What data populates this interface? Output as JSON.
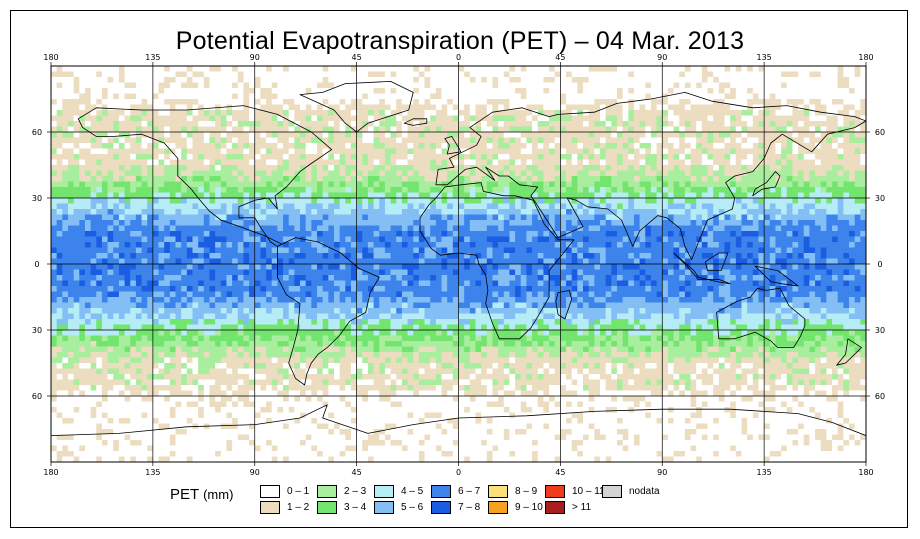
{
  "title": "Potential Evapotranspiration (PET) – 04 Mar. 2013",
  "axes": {
    "lon_ticks": [
      {
        "lon": -180,
        "label": "180"
      },
      {
        "lon": -135,
        "label": "135"
      },
      {
        "lon": -90,
        "label": "90"
      },
      {
        "lon": -45,
        "label": "45"
      },
      {
        "lon": 0,
        "label": "0"
      },
      {
        "lon": 45,
        "label": "45"
      },
      {
        "lon": 90,
        "label": "90"
      },
      {
        "lon": 135,
        "label": "135"
      },
      {
        "lon": 180,
        "label": "180"
      }
    ],
    "lat_ticks": [
      {
        "lat": 60,
        "label": "60"
      },
      {
        "lat": 30,
        "label": "30"
      },
      {
        "lat": 0,
        "label": "0"
      },
      {
        "lat": -30,
        "label": "30"
      },
      {
        "lat": -60,
        "label": "60"
      }
    ],
    "lon_range": [
      -180,
      180
    ],
    "lat_range": [
      -90,
      90
    ]
  },
  "legend": {
    "title": "PET",
    "unit": "(mm)",
    "items": [
      {
        "label": "0 – 1",
        "color": "#ffffff"
      },
      {
        "label": "1 – 2",
        "color": "#ecdcc0"
      },
      {
        "label": "2 – 3",
        "color": "#a9ee9e"
      },
      {
        "label": "3 – 4",
        "color": "#73e56e"
      },
      {
        "label": "4 – 5",
        "color": "#b5ecf6"
      },
      {
        "label": "5 – 6",
        "color": "#83bef5"
      },
      {
        "label": "6 – 7",
        "color": "#3c84ec"
      },
      {
        "label": "7 – 8",
        "color": "#1a5de2"
      },
      {
        "label": "8 – 9",
        "color": "#fae07a"
      },
      {
        "label": "9 – 10",
        "color": "#f7a21e"
      },
      {
        "label": "10 – 11",
        "color": "#f03a1c"
      },
      {
        "label": "> 11",
        "color": "#a81e1e"
      },
      {
        "label": "nodata",
        "color": "#d4d4d4"
      }
    ]
  },
  "zones": [
    {
      "lat": 90,
      "band": 0
    },
    {
      "lat": 76,
      "band": 0
    },
    {
      "lat": 68,
      "band": 1
    },
    {
      "lat": 56,
      "band": 1
    },
    {
      "lat": 46,
      "band": 1
    },
    {
      "lat": 38,
      "band": 2
    },
    {
      "lat": 33,
      "band": 3
    },
    {
      "lat": 28,
      "band": 4
    },
    {
      "lat": 22,
      "band": 5
    },
    {
      "lat": 14,
      "band": 6
    },
    {
      "lat": 6,
      "band": 6
    },
    {
      "lat": -4,
      "band": 6
    },
    {
      "lat": -12,
      "band": 6
    },
    {
      "lat": -20,
      "band": 5
    },
    {
      "lat": -26,
      "band": 4
    },
    {
      "lat": -32,
      "band": 3
    },
    {
      "lat": -38,
      "band": 2
    },
    {
      "lat": -45,
      "band": 1
    },
    {
      "lat": -55,
      "band": 1
    },
    {
      "lat": -62,
      "band": 0
    },
    {
      "lat": -90,
      "band": 0
    }
  ]
}
